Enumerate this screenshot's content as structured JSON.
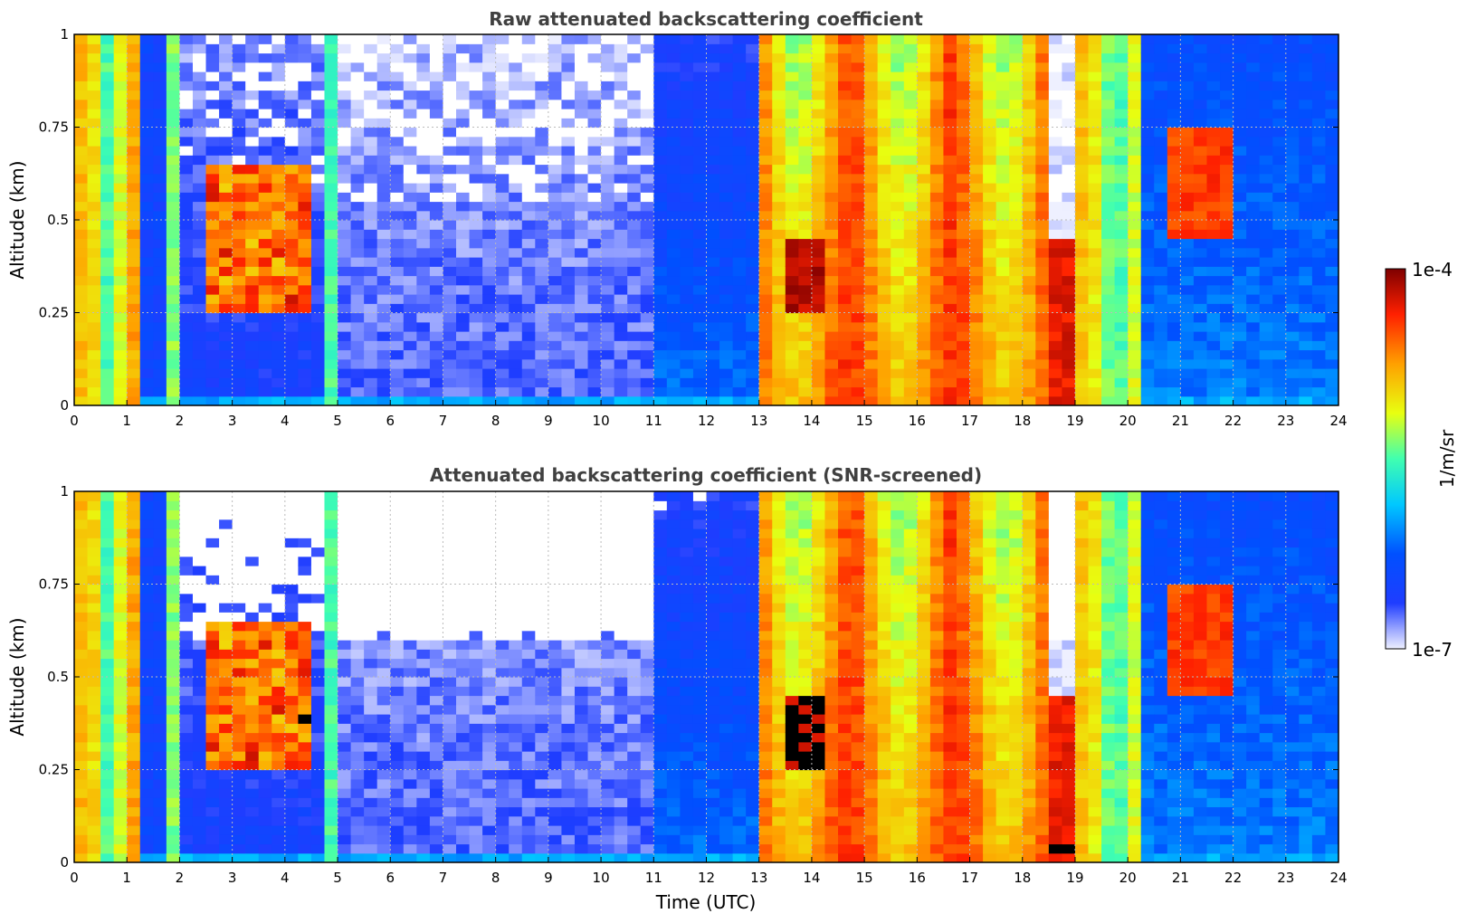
{
  "chart_data": [
    {
      "type": "heatmap",
      "title": "Raw attenuated backscattering coefficient",
      "xlabel": "",
      "ylabel": "Altitude (km)",
      "xlim": [
        0,
        24
      ],
      "ylim": [
        0,
        1
      ],
      "xticks": [
        "0",
        "1",
        "2",
        "3",
        "4",
        "5",
        "6",
        "7",
        "8",
        "9",
        "10",
        "11",
        "12",
        "13",
        "14",
        "15",
        "16",
        "17",
        "18",
        "19",
        "20",
        "21",
        "22",
        "23",
        "24"
      ],
      "yticks": [
        "0",
        "0.25",
        "0.5",
        "0.75",
        "1"
      ],
      "grid": true,
      "colorscale": "jet",
      "color_scale_type": "log",
      "value_range": [
        1e-07,
        0.0001
      ],
      "screened": false,
      "masked_as_black": false
    },
    {
      "type": "heatmap",
      "title": "Attenuated backscattering coefficient (SNR-screened)",
      "xlabel": "Time (UTC)",
      "ylabel": "Altitude (km)",
      "xlim": [
        0,
        24
      ],
      "ylim": [
        0,
        1
      ],
      "xticks": [
        "0",
        "1",
        "2",
        "3",
        "4",
        "5",
        "6",
        "7",
        "8",
        "9",
        "10",
        "11",
        "12",
        "13",
        "14",
        "15",
        "16",
        "17",
        "18",
        "19",
        "20",
        "21",
        "22",
        "23",
        "24"
      ],
      "yticks": [
        "0",
        "0.25",
        "0.5",
        "0.75",
        "1"
      ],
      "grid": true,
      "colorscale": "jet",
      "color_scale_type": "log",
      "value_range": [
        1e-07,
        0.0001
      ],
      "screened": true,
      "masked_as_black": true
    }
  ],
  "colorbar": {
    "label": "1/m/sr",
    "max_label": "1e-4",
    "min_label": "1e-7",
    "min_color": "#eef0ff",
    "max_color": "#7f0000"
  }
}
